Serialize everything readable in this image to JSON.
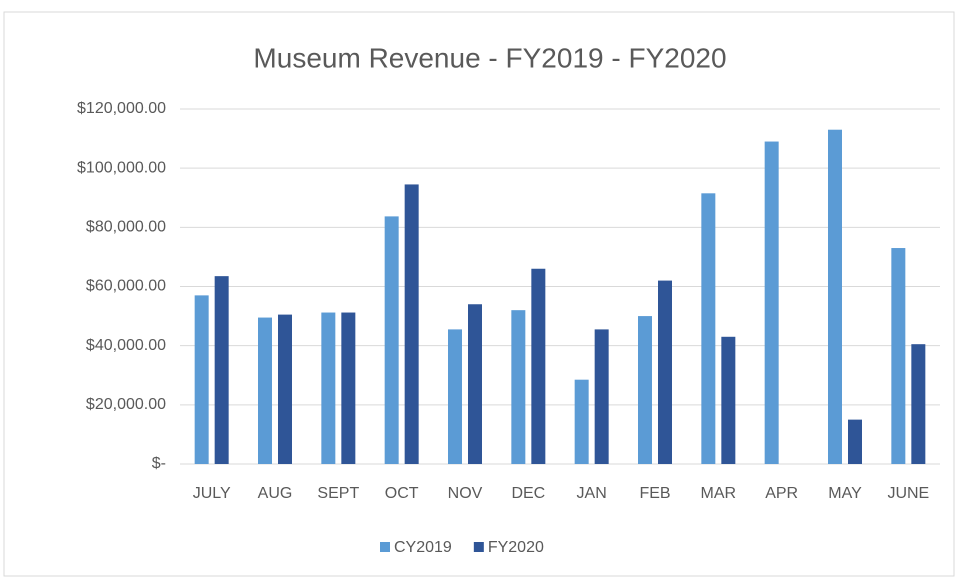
{
  "chart_data": {
    "type": "bar",
    "title": "Museum Revenue - FY2019 - FY2020",
    "categories": [
      "JULY",
      "AUG",
      "SEPT",
      "OCT",
      "NOV",
      "DEC",
      "JAN",
      "FEB",
      "MAR",
      "APR",
      "MAY",
      "JUNE"
    ],
    "series": [
      {
        "name": "CY2019",
        "color": "#5b9bd5",
        "values": [
          57000,
          49500,
          51200,
          83700,
          45500,
          52000,
          28500,
          50000,
          91500,
          109000,
          113000,
          73000
        ]
      },
      {
        "name": "FY2020",
        "color": "#2f5597",
        "values": [
          63500,
          50500,
          51200,
          94500,
          54000,
          66000,
          45500,
          62000,
          43000,
          null,
          15000,
          40500
        ]
      }
    ],
    "ylim": [
      0,
      120000
    ],
    "yticks": [
      {
        "value": 0,
        "label": "$-"
      },
      {
        "value": 20000,
        "label": "$20,000.00"
      },
      {
        "value": 40000,
        "label": "$40,000.00"
      },
      {
        "value": 60000,
        "label": "$60,000.00"
      },
      {
        "value": 80000,
        "label": "$80,000.00"
      },
      {
        "value": 100000,
        "label": "$100,000.00"
      },
      {
        "value": 120000,
        "label": "$120,000.00"
      }
    ],
    "grid": true,
    "legend": "bottom"
  }
}
